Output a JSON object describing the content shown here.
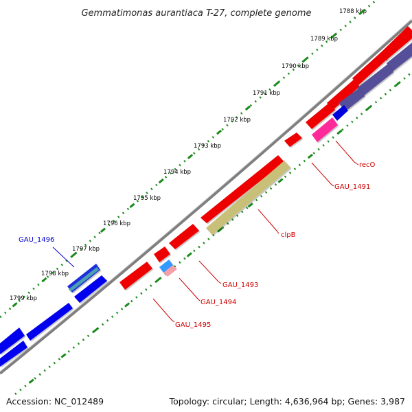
{
  "title": "Gemmatimonas aurantiaca T-27, complete genome",
  "ruler_labels": [
    "1788 kbp",
    "1789 kbp",
    "1790 kbp",
    "1791 kbp",
    "1792 kbp",
    "1793 kbp",
    "1794 kbp",
    "1795 kbp",
    "1796 kbp",
    "1797 kbp",
    "1798 kbp",
    "1799 kbp"
  ],
  "genes": [
    {
      "label": "GAU_1496",
      "color": "#0000cc"
    },
    {
      "label": "recO",
      "color": "#cc0000"
    },
    {
      "label": "GAU_1491",
      "color": "#cc0000"
    },
    {
      "label": "clpB",
      "color": "#cc0000"
    },
    {
      "label": "GAU_1493",
      "color": "#cc0000"
    },
    {
      "label": "GAU_1494",
      "color": "#cc0000"
    },
    {
      "label": "GAU_1495",
      "color": "#cc0000"
    }
  ],
  "colors": {
    "forward_gene": "#ff0000",
    "reverse_gene": "#0000ff",
    "ruler_tick": "#1a8a1a",
    "backbone": "#808080",
    "clpB_feature": "#c8c078",
    "recO_feature": "#ff2a9a",
    "GAU_1494_feature": "#3399ff",
    "purple_feature": "#55509a"
  },
  "footer": {
    "accession": "Accession: NC_012489",
    "stats": "Topology: circular; Length: 4,636,964 bp; Genes: 3,987"
  }
}
